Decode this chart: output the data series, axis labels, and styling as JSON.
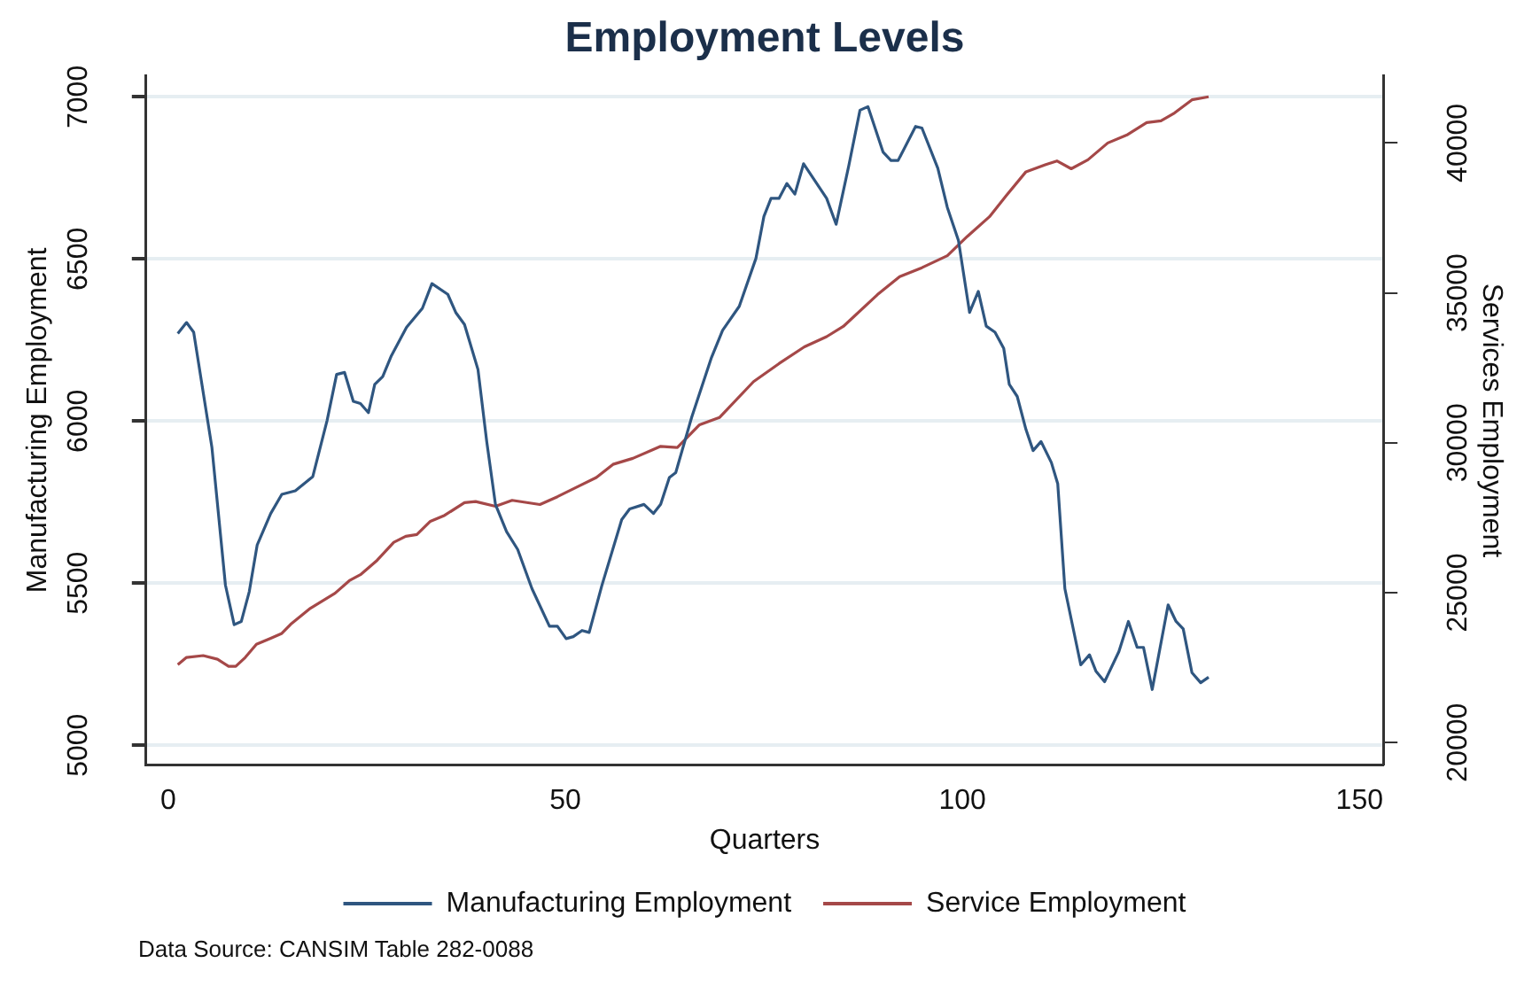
{
  "chart_data": {
    "type": "line",
    "title": "Employment Levels",
    "xlabel": "Quarters",
    "ylabel": "Manufacturing Employment",
    "y2label": "Services Employment",
    "xlim": [
      -2.8,
      153
    ],
    "xticks": [
      0,
      50,
      100,
      150
    ],
    "ylim": [
      4940,
      7065
    ],
    "yticks": [
      5000,
      5500,
      6000,
      6500,
      7000
    ],
    "y2lim": [
      19260,
      42240
    ],
    "y2ticks": [
      20000,
      25000,
      30000,
      35000,
      40000
    ],
    "grid": "y",
    "legend": "bottom",
    "marker": "none",
    "line_style": "solid",
    "annotations": [
      "Data Source: CANSIM Table 282-0088"
    ],
    "series": [
      {
        "name": "Manufacturing Employment",
        "color": "#2f5680",
        "x": [
          1.2,
          2.3,
          3.2,
          5.5,
          7.2,
          8.3,
          9.2,
          10.2,
          11.2,
          12.9,
          14.3,
          16,
          18.2,
          20,
          21.2,
          22.2,
          23.3,
          24.2,
          25.2,
          26,
          27,
          28.1,
          30,
          32,
          33.2,
          35.2,
          36.2,
          37.3,
          39,
          40.1,
          41.2,
          42.6,
          44,
          45.8,
          48,
          49,
          50.1,
          51,
          52.1,
          53,
          54.6,
          57.1,
          58.1,
          59.9,
          61.1,
          62,
          63.1,
          63.9,
          65.9,
          68.4,
          69.8,
          71.9,
          74,
          75,
          75.9,
          76.9,
          77.9,
          78.9,
          80,
          82.9,
          84.1,
          85.7,
          87.1,
          88.1,
          90,
          91,
          91.9,
          94.1,
          94.9,
          96.9,
          98.1,
          99.5,
          100.9,
          102,
          103,
          104.1,
          105.2,
          105.9,
          106.9,
          108,
          108.9,
          109.9,
          111.2,
          112,
          112.9,
          114.9,
          116,
          116.8,
          117.9,
          119.7,
          120.9,
          122,
          122.8,
          123.9,
          125.9,
          126.9,
          127.8,
          128.9,
          130,
          131
        ],
        "values": [
          6270,
          6304,
          6274,
          5918,
          5494,
          5372,
          5382,
          5474,
          5618,
          5715,
          5774,
          5785,
          5829,
          6002,
          6144,
          6150,
          6061,
          6054,
          6026,
          6113,
          6137,
          6202,
          6289,
          6348,
          6424,
          6391,
          6335,
          6298,
          6159,
          5937,
          5743,
          5659,
          5604,
          5483,
          5367,
          5367,
          5329,
          5335,
          5354,
          5348,
          5493,
          5696,
          5729,
          5743,
          5715,
          5743,
          5826,
          5841,
          6011,
          6196,
          6280,
          6354,
          6502,
          6631,
          6687,
          6687,
          6733,
          6700,
          6794,
          6687,
          6607,
          6789,
          6959,
          6970,
          6830,
          6804,
          6804,
          6909,
          6904,
          6780,
          6659,
          6557,
          6335,
          6400,
          6293,
          6274,
          6224,
          6113,
          6076,
          5974,
          5909,
          5937,
          5872,
          5807,
          5483,
          5248,
          5279,
          5229,
          5196,
          5289,
          5382,
          5302,
          5302,
          5172,
          5433,
          5382,
          5359,
          5224,
          5193,
          5210
        ]
      },
      {
        "name": "Service Employment",
        "color": "#a54848",
        "axis": "y2",
        "x": [
          1.2,
          2.3,
          4.4,
          6.2,
          7.6,
          8.5,
          9.7,
          11.1,
          12.9,
          14.3,
          15.4,
          17.9,
          21,
          22.8,
          24.2,
          26.3,
          28.4,
          29.9,
          31.3,
          33,
          34.8,
          37.3,
          38.7,
          41.2,
          43.3,
          46.8,
          49,
          51.6,
          53.9,
          56,
          58.5,
          62,
          64.1,
          66.9,
          69.4,
          73.7,
          76.9,
          80.1,
          82.9,
          85,
          89.3,
          92.1,
          94.9,
          98.1,
          100.6,
          103.4,
          105.5,
          108,
          110.5,
          111.9,
          113.7,
          115.8,
          118.3,
          120.8,
          123.2,
          125,
          126.7,
          128.9,
          131
        ],
        "values": [
          22600,
          22840,
          22900,
          22780,
          22540,
          22540,
          22840,
          23280,
          23480,
          23640,
          23940,
          24480,
          24980,
          25400,
          25600,
          26080,
          26680,
          26880,
          26940,
          27380,
          27580,
          28000,
          28040,
          27880,
          28080,
          27940,
          28200,
          28540,
          28840,
          29280,
          29480,
          29880,
          29840,
          30600,
          30840,
          32040,
          32640,
          33200,
          33540,
          33880,
          34940,
          35540,
          35840,
          36240,
          36880,
          37540,
          38240,
          39040,
          39280,
          39400,
          39140,
          39440,
          40000,
          40280,
          40680,
          40740,
          41000,
          41440,
          41540
        ]
      }
    ]
  }
}
